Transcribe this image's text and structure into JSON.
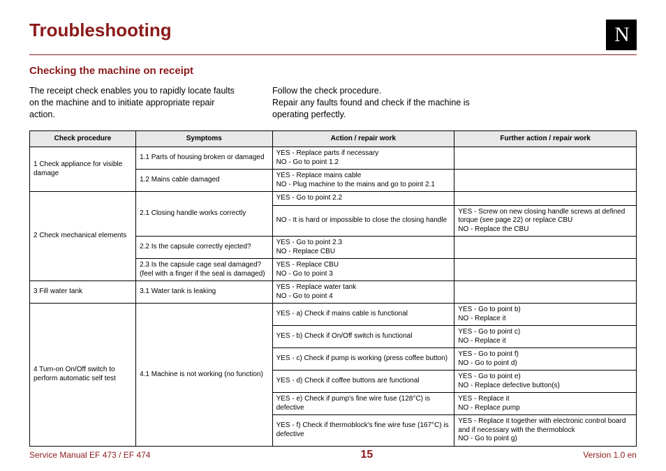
{
  "title": "Troubleshooting",
  "logo_text": "N",
  "section": "Checking the machine on receipt",
  "intro": {
    "left": "The receipt check enables you to rapidly locate faults on the machine and to initiate appropriate repair action.",
    "right": "Follow the check procedure.\nRepair any faults found and check if the machine is operating perfectly."
  },
  "columns": [
    "Check procedure",
    "Symptoms",
    "Action / repair work",
    "Further action / repair work"
  ],
  "r1": {
    "proc": "1 Check appliance for visible damage",
    "s1": "1.1 Parts of housing broken or damaged",
    "a1": "YES - Replace parts if necessary\nNO - Go to point 1.2",
    "s2": "1.2 Mains cable damaged",
    "a2": "YES - Replace mains cable\nNO - Plug machine to the mains and go to point 2.1"
  },
  "r2": {
    "proc": "2 Check mechanical elements",
    "s1": "2.1 Closing handle works correctly",
    "a1a": "YES - Go to point 2.2",
    "a1b": "NO - It is hard or impossible to close the closing handle",
    "m1b": "YES - Screw on new closing handle screws at defined torque (see page 22) or replace CBU\nNO - Replace the CBU",
    "s2": "2.2 Is the capsule correctly ejected?",
    "a2": "YES - Go to point 2.3\nNO - Replace CBU",
    "s3": "2.3 Is the capsule cage seal damaged? (feel with a finger if the seal is damaged)",
    "a3": "YES - Replace CBU\nNO - Go to point 3"
  },
  "r3": {
    "proc": "3 Fill water tank",
    "s1": "3.1 Water tank is leaking",
    "a1": "YES - Replace water tank\nNO - Go to point 4"
  },
  "r4": {
    "proc": "4 Turn-on On/Off switch to perform automatic self test",
    "s1": "4.1 Machine is not working (no function)",
    "a": "YES - a) Check if mains cable is functional",
    "am": "YES - Go to point b)\nNO - Replace it",
    "b": "YES - b) Check if On/Off switch is functional",
    "bm": "YES - Go to point c)\nNO - Replace it",
    "c": "YES - c) Check if pump is working (press coffee button)",
    "cm": "YES - Go to point f)\nNO - Go to point d)",
    "d": "YES - d) Check if coffee buttons are functional",
    "dm": "YES - Go to point e)\nNO - Replace defective button(s)",
    "e": "YES - e) Check if pump's fine wire fuse (128°C) is defective",
    "em": "YES - Replace it\nNO - Replace pump",
    "f": "YES - f) Check if thermoblock's fine wire fuse (167°C) is defective",
    "fm": "YES - Replace it together with electronic control board and if necessary with the thermoblock\nNO - Go to point g)"
  },
  "footer": {
    "left": "Service Manual EF 473 / EF 474",
    "page": "15",
    "right": "Version 1.0  en"
  },
  "colors": {
    "brand": "#8b1a1a",
    "header_bg": "#e8e8e8"
  }
}
